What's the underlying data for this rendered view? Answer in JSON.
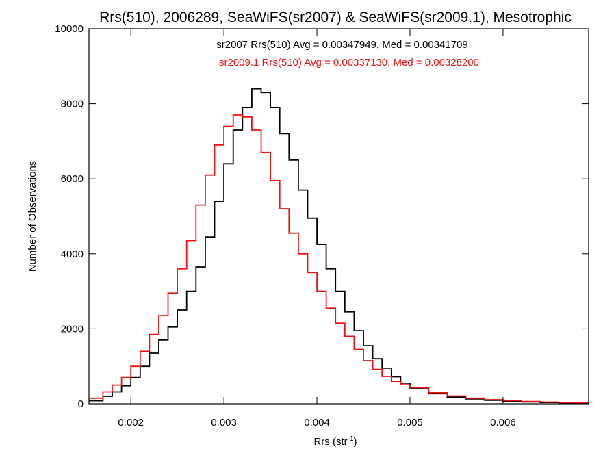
{
  "chart_data": {
    "type": "line",
    "step": true,
    "title": "Rrs(510), 2006289, SeaWiFS(sr2007) & SeaWiFS(sr2009.1), Mesotrophic",
    "xlabel": "Rrs (str",
    "xlabel_sup": "-1",
    "xlabel_end": ")",
    "ylabel": "Number of Observations",
    "xlim": [
      0.00155,
      0.00692
    ],
    "ylim": [
      0,
      10000
    ],
    "xticks": [
      0.002,
      0.003,
      0.004,
      0.005,
      0.006
    ],
    "xtick_labels": [
      "0.002",
      "0.003",
      "0.004",
      "0.005",
      "0.006"
    ],
    "yticks": [
      0,
      2000,
      4000,
      6000,
      8000,
      10000
    ],
    "ytick_labels": [
      "0",
      "2000",
      "4000",
      "6000",
      "8000",
      "10000"
    ],
    "grid": false,
    "annotations": [
      {
        "text": "sr2007 Rrs(510) Avg = 0.00347949, Med = 0.00341709",
        "color": "#000000"
      },
      {
        "text": "sr2009.1 Rrs(510) Avg = 0.00337130, Med = 0.00328200",
        "color": "#ee1111"
      }
    ],
    "series": [
      {
        "color": "#000000",
        "x": [
          0.00155,
          0.0017,
          0.0018,
          0.0019,
          0.002,
          0.0021,
          0.0022,
          0.0023,
          0.0024,
          0.0025,
          0.0026,
          0.0027,
          0.0028,
          0.0029,
          0.003,
          0.0031,
          0.0032,
          0.0033,
          0.0034,
          0.0035,
          0.0036,
          0.0037,
          0.0038,
          0.0039,
          0.004,
          0.0041,
          0.0042,
          0.0043,
          0.0044,
          0.0045,
          0.0046,
          0.0047,
          0.0048,
          0.0049,
          0.005,
          0.0052,
          0.0054,
          0.0056,
          0.0058,
          0.006,
          0.0062,
          0.0064,
          0.0066,
          0.0068,
          0.00692
        ],
        "y": [
          80,
          200,
          320,
          480,
          700,
          1000,
          1350,
          1700,
          2050,
          2500,
          3000,
          3650,
          4450,
          5400,
          6400,
          7300,
          7900,
          8400,
          8300,
          7900,
          7200,
          6500,
          5700,
          4950,
          4250,
          3600,
          3000,
          2450,
          1950,
          1550,
          1200,
          950,
          720,
          550,
          420,
          270,
          180,
          130,
          95,
          70,
          50,
          35,
          25,
          20,
          15
        ]
      },
      {
        "color": "#ee1111",
        "x": [
          0.00155,
          0.0017,
          0.0018,
          0.0019,
          0.002,
          0.0021,
          0.0022,
          0.0023,
          0.0024,
          0.0025,
          0.0026,
          0.0027,
          0.0028,
          0.0029,
          0.003,
          0.0031,
          0.0032,
          0.0033,
          0.0034,
          0.0035,
          0.0036,
          0.0037,
          0.0038,
          0.0039,
          0.004,
          0.0041,
          0.0042,
          0.0043,
          0.0044,
          0.0045,
          0.0046,
          0.0047,
          0.0048,
          0.0049,
          0.005,
          0.0052,
          0.0054,
          0.0056,
          0.0058,
          0.006,
          0.0062,
          0.0064,
          0.0066,
          0.0068,
          0.00692
        ],
        "y": [
          150,
          320,
          500,
          700,
          1000,
          1400,
          1850,
          2350,
          2950,
          3600,
          4350,
          5300,
          6100,
          6900,
          7400,
          7700,
          7650,
          7300,
          6700,
          5950,
          5200,
          4550,
          4000,
          3500,
          3000,
          2550,
          2150,
          1800,
          1450,
          1150,
          920,
          730,
          600,
          510,
          430,
          300,
          210,
          150,
          110,
          85,
          60,
          45,
          30,
          25,
          20
        ]
      }
    ]
  }
}
